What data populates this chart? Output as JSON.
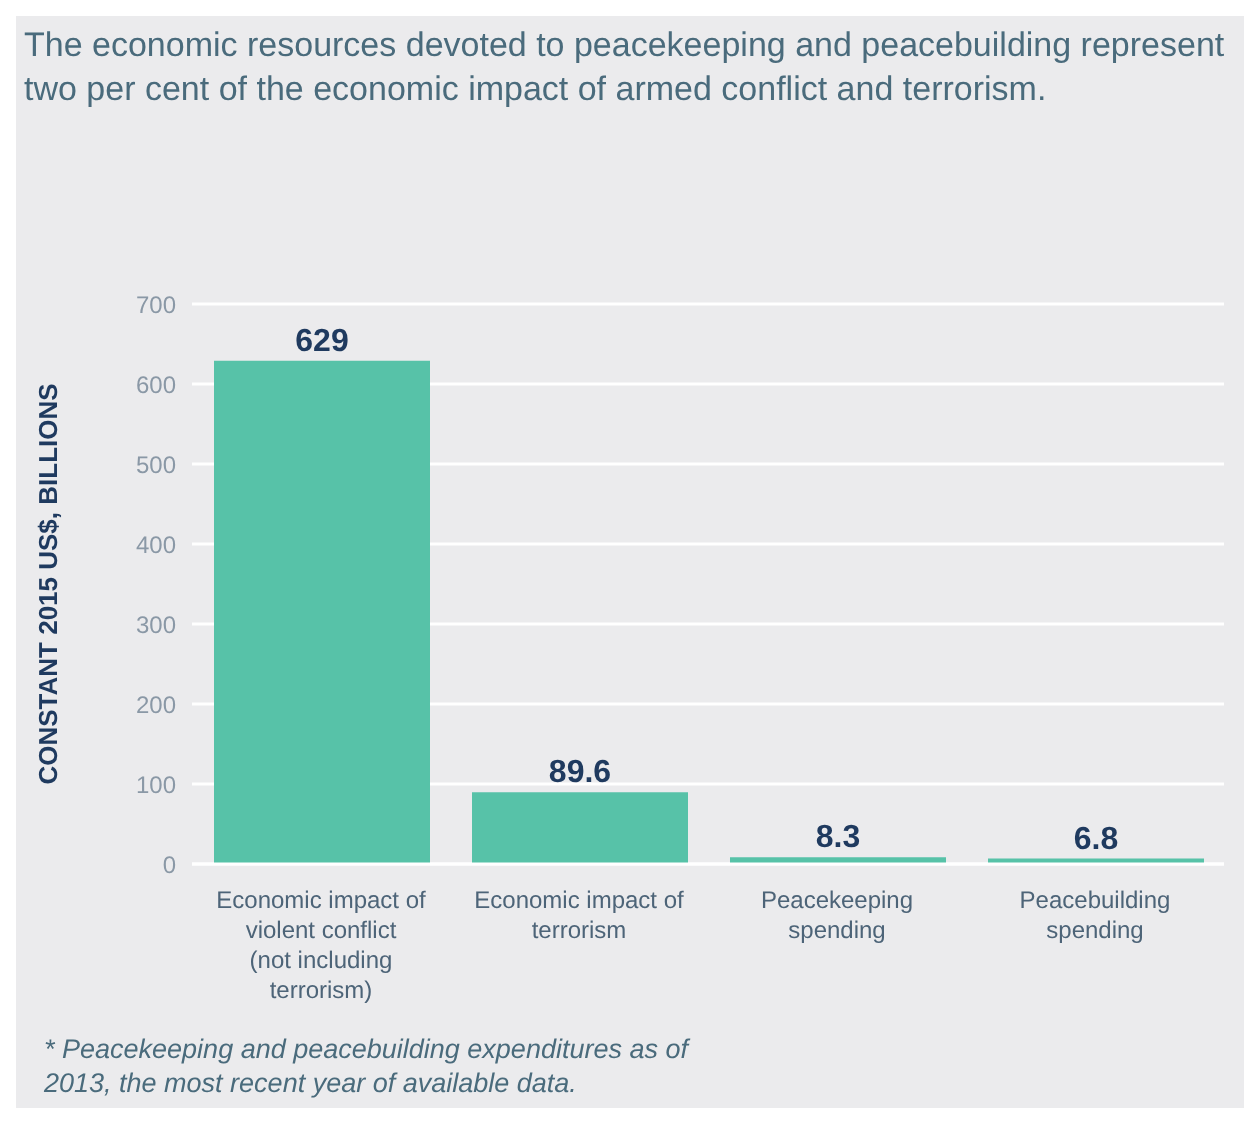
{
  "chart_data": {
    "type": "bar",
    "title": "The economic resources devoted to peacekeeping and peacebuilding represent two per cent of the economic impact of armed conflict and terrorism.",
    "ylabel": "CONSTANT 2015 US$, BILLIONS",
    "categories": [
      "Economic impact of violent conflict (not including terrorism)",
      "Economic impact of terrorism",
      "Peacekeeping spending",
      "Peacebuilding spending"
    ],
    "values": [
      629,
      89.6,
      8.3,
      6.8
    ],
    "color": "#57c2a8",
    "ylim": [
      0,
      700
    ],
    "yticks": [
      0,
      100,
      200,
      300,
      400,
      500,
      600,
      700
    ],
    "grid": "y",
    "data_labels": true,
    "annotations": [
      "* Peacekeeping and peacebuilding expenditures as of 2013, the most recent year of available data."
    ]
  }
}
